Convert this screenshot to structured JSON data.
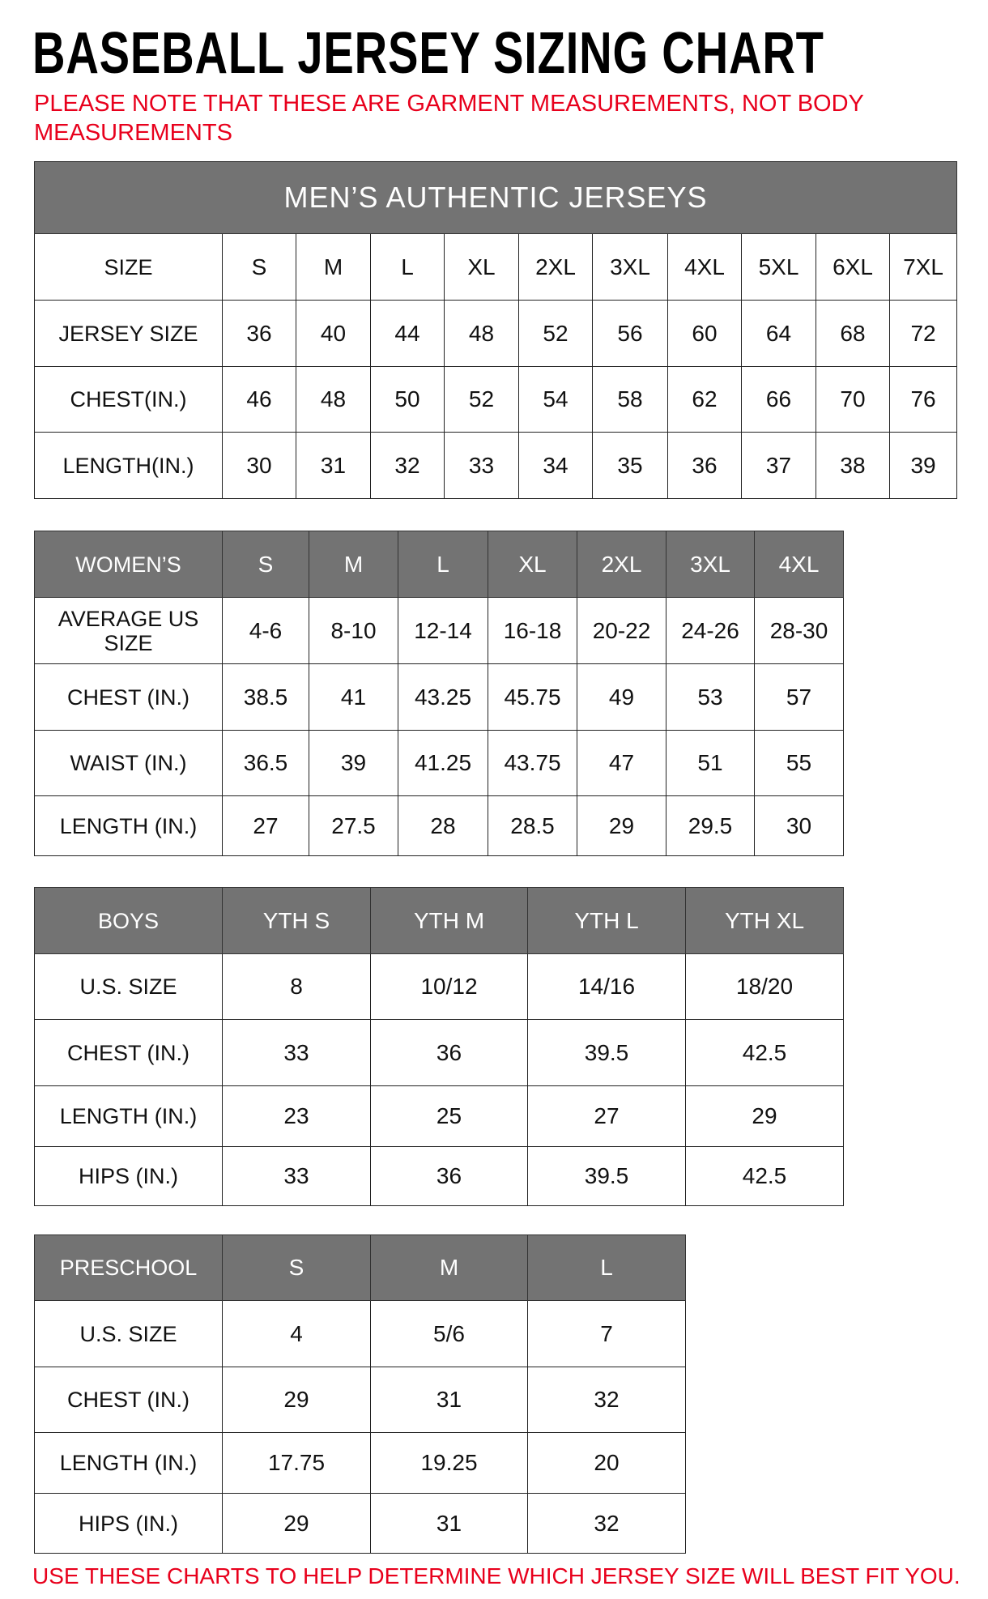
{
  "title": "BASEBALL JERSEY SIZING CHART",
  "note": "PLEASE NOTE THAT THESE ARE GARMENT MEASUREMENTS, NOT BODY MEASUREMENTS",
  "footer": "USE THESE CHARTS TO HELP DETERMINE WHICH JERSEY SIZE WILL BEST FIT YOU.",
  "colors": {
    "header_bg": "#737373",
    "note_red": "#e8001c"
  },
  "tables": [
    {
      "id": "mens",
      "banner": "MEN’S AUTHENTIC JERSEYS",
      "header_dark": false,
      "header": [
        "SIZE",
        "S",
        "M",
        "L",
        "XL",
        "2XL",
        "3XL",
        "4XL",
        "5XL",
        "6XL",
        "7XL"
      ],
      "rows": [
        [
          "JERSEY SIZE",
          "36",
          "40",
          "44",
          "48",
          "52",
          "56",
          "60",
          "64",
          "68",
          "72"
        ],
        [
          "CHEST(IN.)",
          "46",
          "48",
          "50",
          "52",
          "54",
          "58",
          "62",
          "66",
          "70",
          "76"
        ],
        [
          "LENGTH(IN.)",
          "30",
          "31",
          "32",
          "33",
          "34",
          "35",
          "36",
          "37",
          "38",
          "39"
        ]
      ]
    },
    {
      "id": "womens",
      "header_dark": true,
      "header": [
        "WOMEN’S",
        "S",
        "M",
        "L",
        "XL",
        "2XL",
        "3XL",
        "4XL"
      ],
      "rows": [
        [
          "AVERAGE US SIZE",
          "4-6",
          "8-10",
          "12-14",
          "16-18",
          "20-22",
          "24-26",
          "28-30"
        ],
        [
          "CHEST (IN.)",
          "38.5",
          "41",
          "43.25",
          "45.75",
          "49",
          "53",
          "57"
        ],
        [
          "WAIST (IN.)",
          "36.5",
          "39",
          "41.25",
          "43.75",
          "47",
          "51",
          "55"
        ],
        [
          "LENGTH (IN.)",
          "27",
          "27.5",
          "28",
          "28.5",
          "29",
          "29.5",
          "30"
        ]
      ]
    },
    {
      "id": "boys",
      "header_dark": true,
      "header": [
        "BOYS",
        "YTH S",
        "YTH M",
        "YTH L",
        "YTH XL"
      ],
      "rows": [
        [
          "U.S. SIZE",
          "8",
          "10/12",
          "14/16",
          "18/20"
        ],
        [
          "CHEST (IN.)",
          "33",
          "36",
          "39.5",
          "42.5"
        ],
        [
          "LENGTH (IN.)",
          "23",
          "25",
          "27",
          "29"
        ],
        [
          "HIPS (IN.)",
          "33",
          "36",
          "39.5",
          "42.5"
        ]
      ]
    },
    {
      "id": "preschool",
      "header_dark": true,
      "header": [
        "PRESCHOOL",
        "S",
        "M",
        "L"
      ],
      "rows": [
        [
          "U.S. SIZE",
          "4",
          "5/6",
          "7"
        ],
        [
          "CHEST (IN.)",
          "29",
          "31",
          "32"
        ],
        [
          "LENGTH (IN.)",
          "17.75",
          "19.25",
          "20"
        ],
        [
          "HIPS (IN.)",
          "29",
          "31",
          "32"
        ]
      ]
    }
  ]
}
